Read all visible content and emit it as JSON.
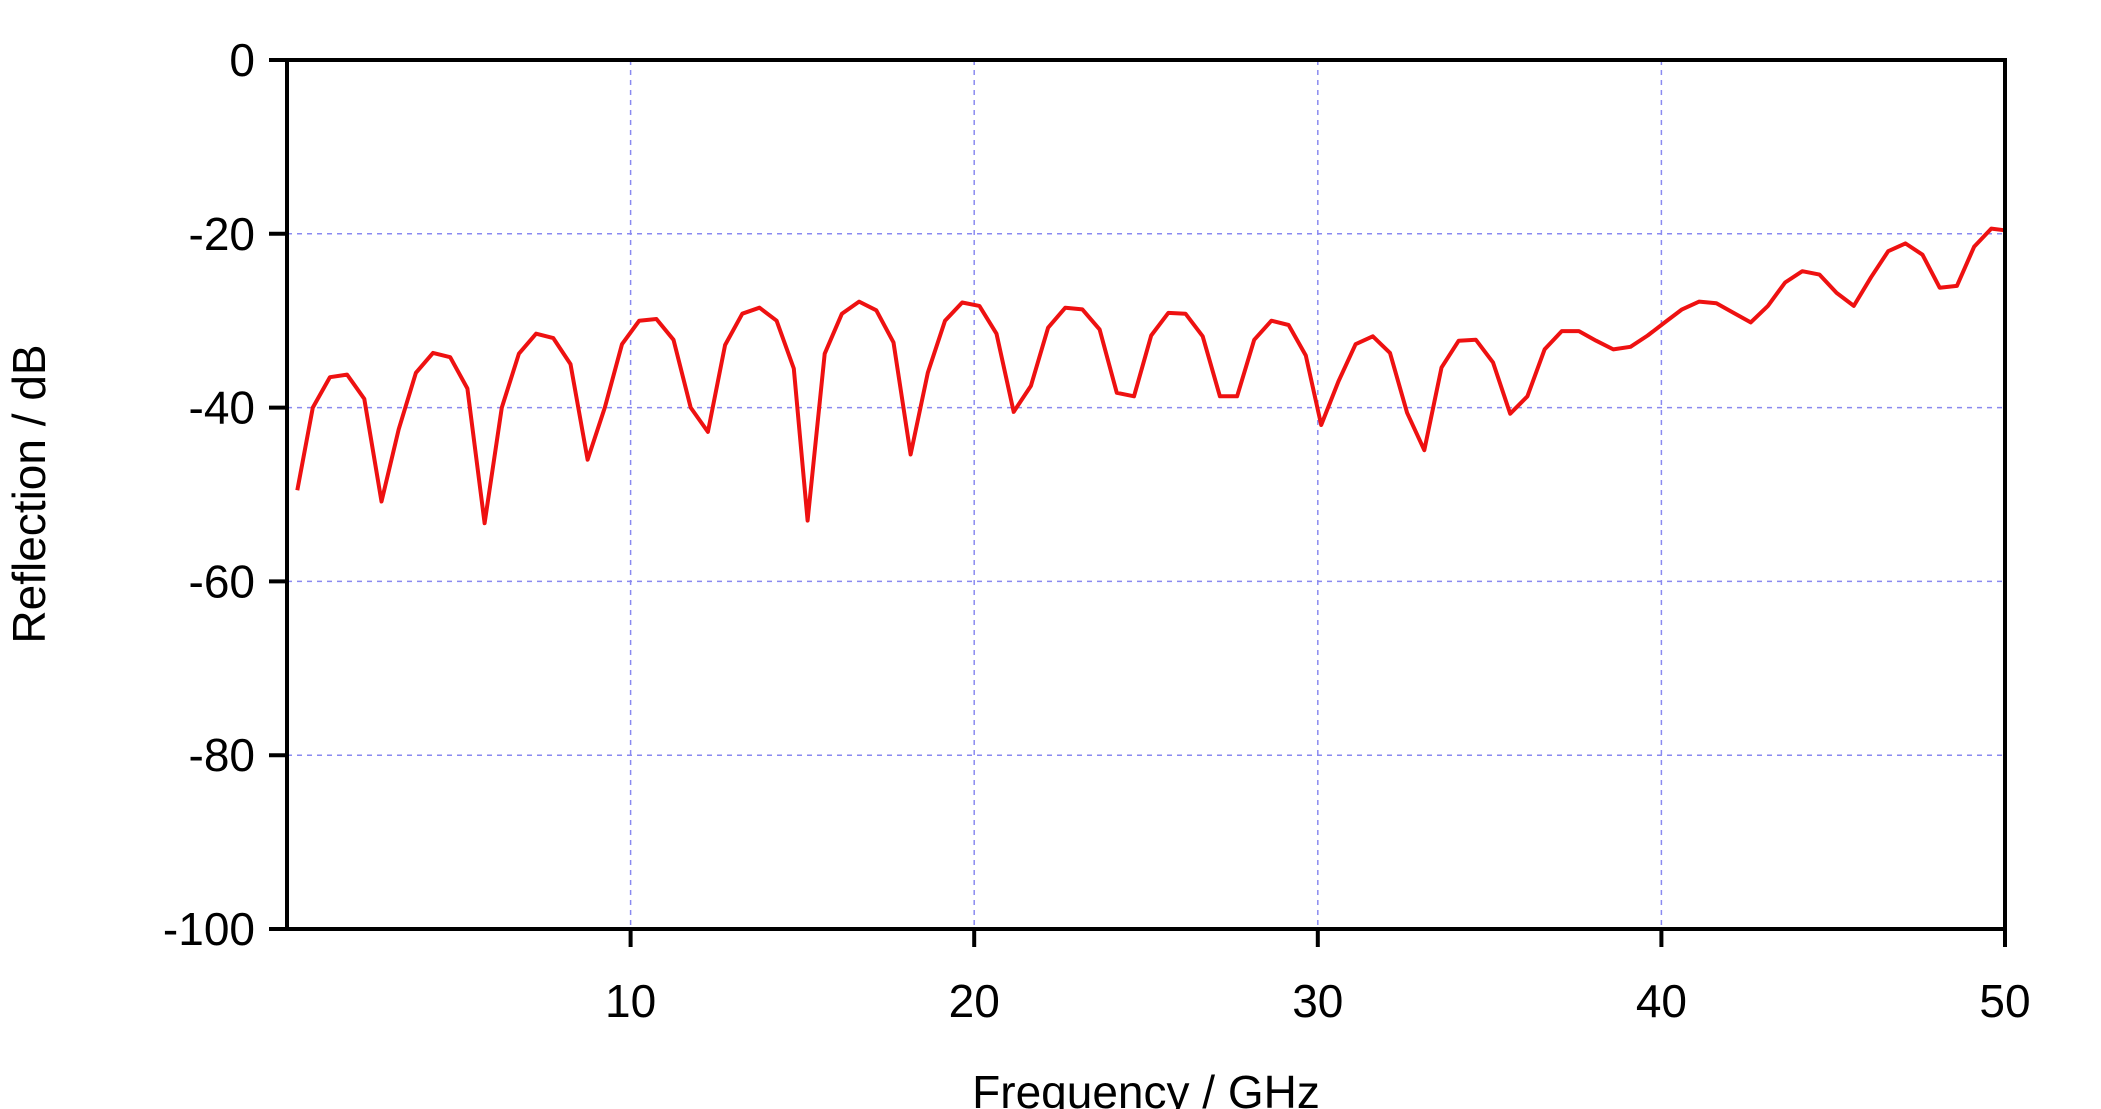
{
  "chart_data": {
    "type": "line",
    "title": "",
    "xlabel": "Frequency / GHz",
    "ylabel": "Reflection / dB",
    "xlim": [
      0,
      50
    ],
    "ylim": [
      -100,
      0
    ],
    "x_ticks": [
      10,
      20,
      30,
      40,
      50
    ],
    "x_tick_labels": [
      "10",
      "20",
      "30",
      "40",
      "50"
    ],
    "y_ticks": [
      0,
      -20,
      -40,
      -60,
      -80,
      -100
    ],
    "y_tick_labels": [
      "0",
      "-20",
      "-40",
      "-60",
      "-80",
      "-100"
    ],
    "grid": true,
    "legend": "none",
    "colors": {
      "series": "#ee1111",
      "grid": "#8a8af0",
      "axes": "#000000"
    },
    "series": [
      {
        "x": [
          0.3,
          0.75,
          1.25,
          1.75,
          2.25,
          2.75,
          3.25,
          3.75,
          4.25,
          4.75,
          5.25,
          5.75,
          6.25,
          6.75,
          7.25,
          7.75,
          8.25,
          8.75,
          9.25,
          9.75,
          10.25,
          10.75,
          11.25,
          11.75,
          12.25,
          12.75,
          13.25,
          13.75,
          14.25,
          14.75,
          15.15,
          15.65,
          16.15,
          16.65,
          17.15,
          17.65,
          18.15,
          18.65,
          19.15,
          19.65,
          20.15,
          20.65,
          21.15,
          21.65,
          22.15,
          22.65,
          23.15,
          23.65,
          24.15,
          24.65,
          25.15,
          25.65,
          26.15,
          26.65,
          27.15,
          27.65,
          28.15,
          28.65,
          29.15,
          29.65,
          30.1,
          30.6,
          31.1,
          31.6,
          32.1,
          32.6,
          33.1,
          33.6,
          34.1,
          34.6,
          35.1,
          35.6,
          36.1,
          36.6,
          37.1,
          37.6,
          38.1,
          38.6,
          39.1,
          39.6,
          40.1,
          40.6,
          41.1,
          41.6,
          42.1,
          42.6,
          43.1,
          43.6,
          44.1,
          44.6,
          45.1,
          45.6,
          46.1,
          46.6,
          47.1,
          47.6,
          48.1,
          48.6,
          49.1,
          49.6,
          50.0
        ],
        "y": [
          -49.5,
          -40,
          -36.5,
          -36.2,
          -39,
          -50.8,
          -42.5,
          -36,
          -33.7,
          -34.2,
          -37.8,
          -53.3,
          -40,
          -33.8,
          -31.5,
          -32,
          -35,
          -46,
          -40,
          -32.7,
          -30,
          -29.8,
          -32.2,
          -40,
          -42.8,
          -32.8,
          -29.2,
          -28.5,
          -30,
          -35.5,
          -53,
          -33.8,
          -29.2,
          -27.8,
          -28.8,
          -32.5,
          -45.4,
          -36,
          -30,
          -27.9,
          -28.3,
          -31.5,
          -40.5,
          -37.5,
          -30.8,
          -28.5,
          -28.7,
          -31,
          -38.3,
          -38.7,
          -31.7,
          -29.1,
          -29.2,
          -31.8,
          -38.7,
          -38.7,
          -32.2,
          -30,
          -30.5,
          -34,
          -42,
          -37,
          -32.7,
          -31.8,
          -33.7,
          -40.6,
          -44.9,
          -35.4,
          -32.3,
          -32.2,
          -34.8,
          -40.7,
          -38.7,
          -33.3,
          -31.2,
          -31.2,
          -32.3,
          -33.3,
          -33,
          -31.7,
          -30.2,
          -28.7,
          -27.8,
          -28,
          -29.1,
          -30.2,
          -28.3,
          -25.6,
          -24.3,
          -24.7,
          -26.8,
          -28.3,
          -25,
          -22,
          -21.1,
          -22.4,
          -26.2,
          -26,
          -21.5,
          -19.4,
          -19.6
        ]
      }
    ]
  }
}
